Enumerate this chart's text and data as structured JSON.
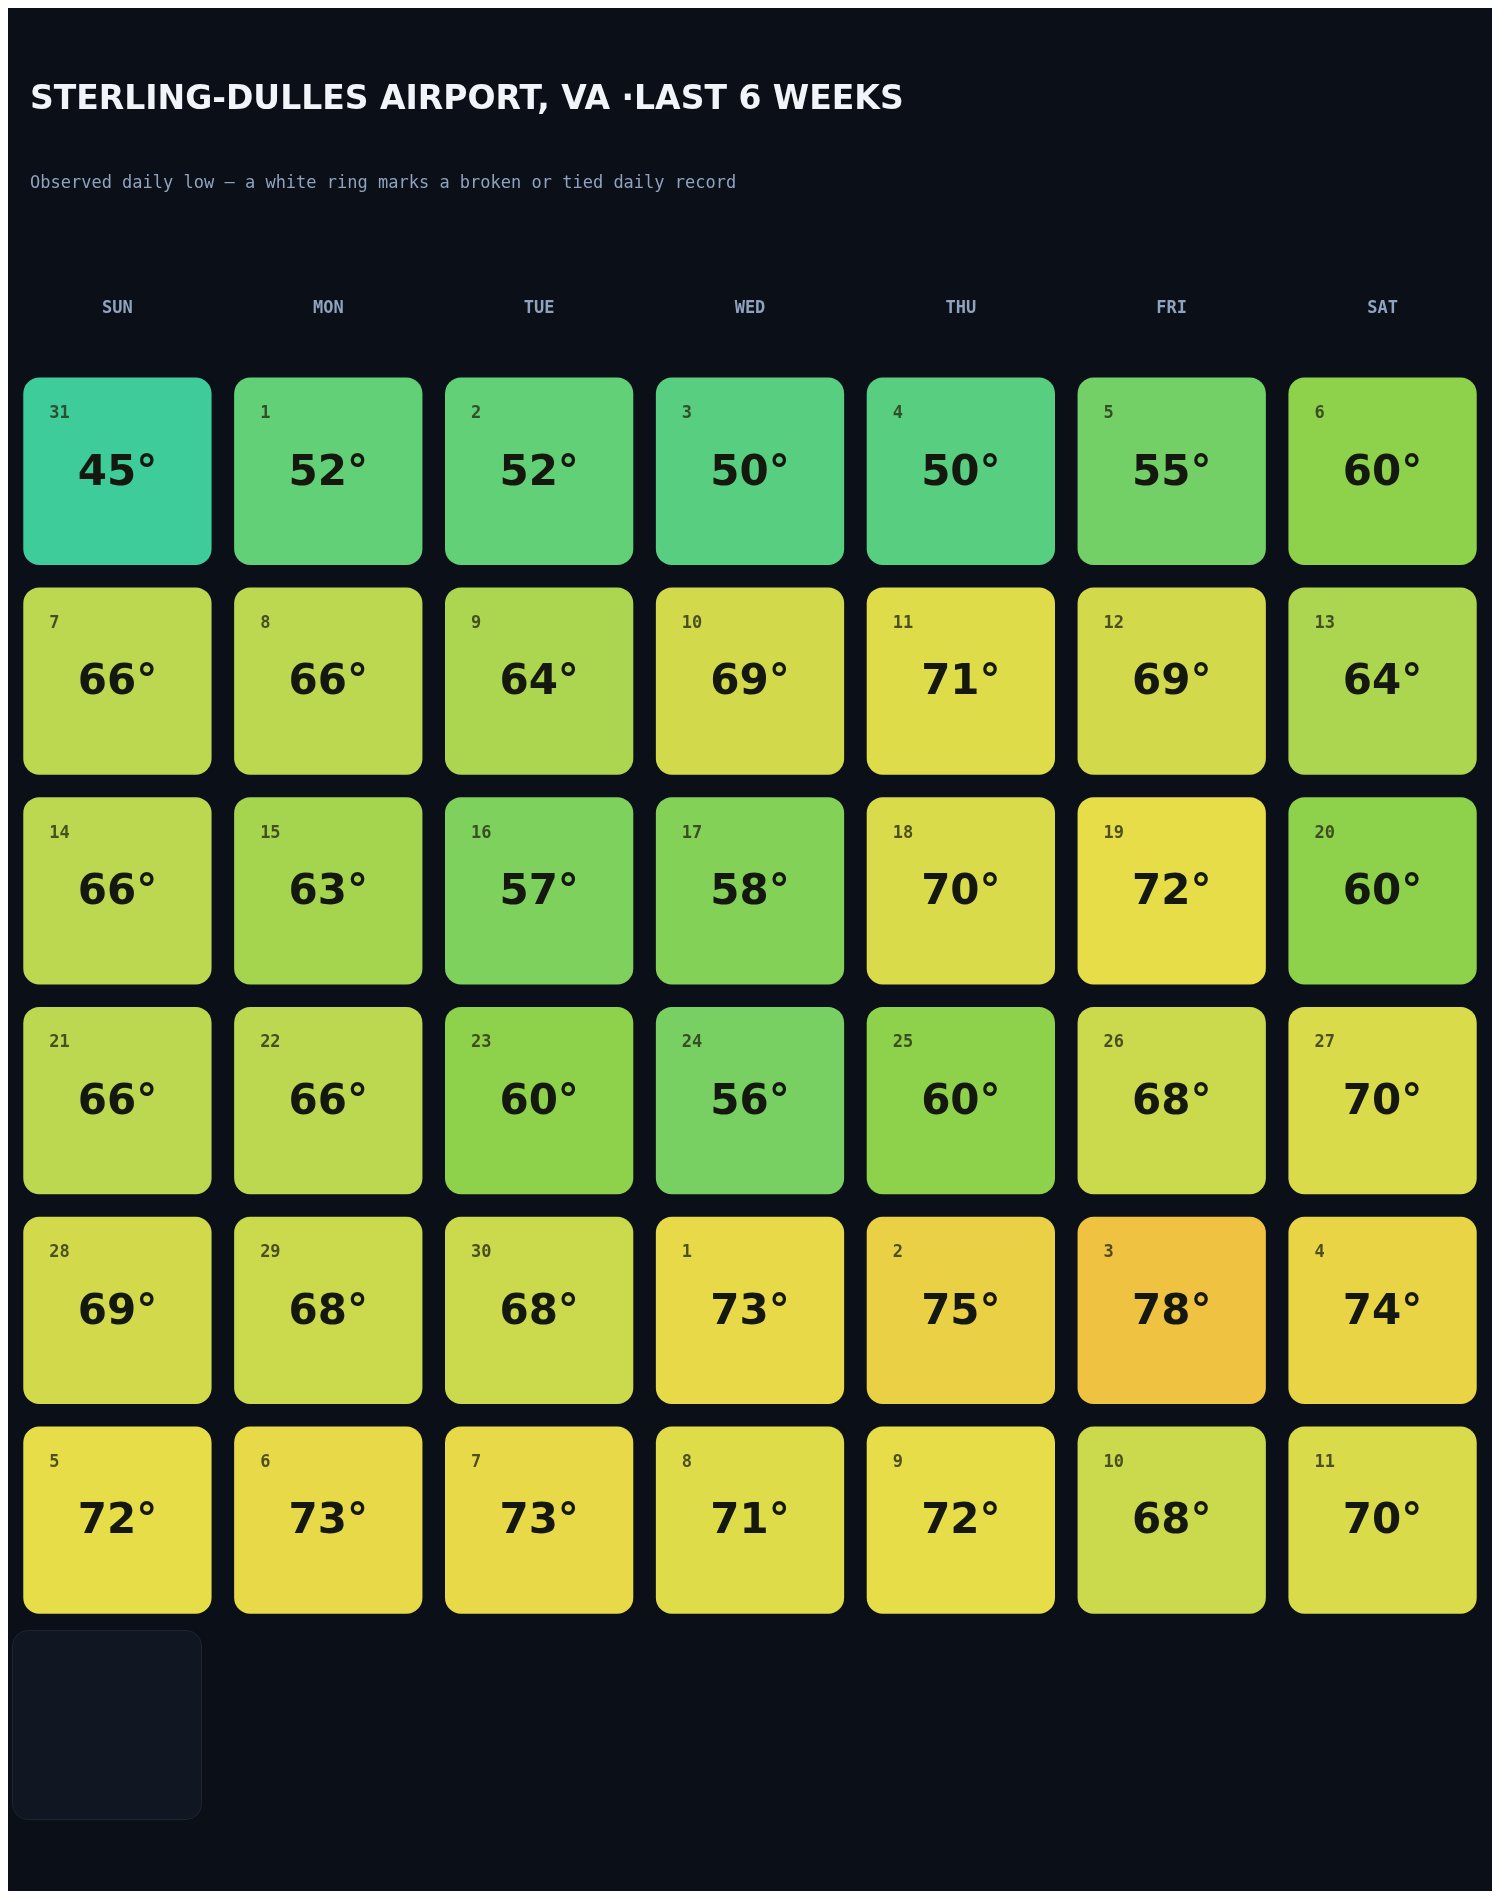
{
  "chart_data": {
    "type": "heatmap",
    "title": "STERLING-DULLES AIRPORT, VA ·LAST 6 WEEKS",
    "subtitle": "Observed daily low — a white ring marks a broken or tied daily record",
    "categories": [
      "SUN",
      "MON",
      "TUE",
      "WED",
      "THU",
      "FRI",
      "SAT"
    ],
    "y_categories": [
      null,
      null,
      null,
      null,
      null,
      null
    ],
    "tick_labels": "x",
    "cells": [
      [
        45,
        52,
        52,
        50,
        50,
        55,
        60
      ],
      [
        66,
        66,
        64,
        69,
        71,
        69,
        64
      ],
      [
        66,
        63,
        57,
        58,
        70,
        72,
        60
      ],
      [
        66,
        66,
        60,
        56,
        60,
        68,
        70
      ],
      [
        69,
        68,
        68,
        73,
        75,
        78,
        74
      ],
      [
        72,
        73,
        73,
        71,
        72,
        68,
        70
      ]
    ],
    "cell_labels": [
      [
        "45°",
        "52°",
        "52°",
        "50°",
        "50°",
        "55°",
        "60°"
      ],
      [
        "66°",
        "66°",
        "64°",
        "69°",
        "71°",
        "69°",
        "64°"
      ],
      [
        "66°",
        "63°",
        "57°",
        "58°",
        "70°",
        "72°",
        "60°"
      ],
      [
        "66°",
        "66°",
        "60°",
        "56°",
        "60°",
        "68°",
        "70°"
      ],
      [
        "69°",
        "68°",
        "68°",
        "73°",
        "75°",
        "78°",
        "74°"
      ],
      [
        "72°",
        "73°",
        "73°",
        "71°",
        "72°",
        "68°",
        "70°"
      ]
    ],
    "annotations": [
      "31",
      "1",
      "2",
      "3",
      "4",
      "5",
      "6",
      "7",
      "8",
      "9",
      "10",
      "11",
      "12",
      "13",
      "14",
      "15",
      "16",
      "17",
      "18",
      "19",
      "20",
      "21",
      "22",
      "23",
      "24",
      "25",
      "26",
      "27",
      "28",
      "29",
      "30",
      "1",
      "2",
      "3",
      "4",
      "5",
      "6",
      "7",
      "8",
      "9",
      "10",
      "11"
    ]
  }
}
